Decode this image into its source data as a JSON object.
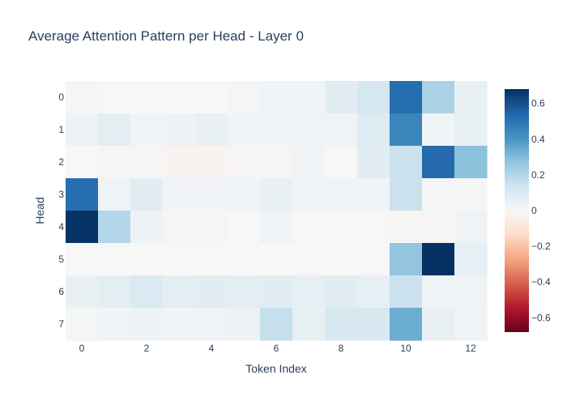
{
  "chart_data": {
    "type": "heatmap",
    "title": "Average Attention Pattern per Head - Layer 0",
    "xlabel": "Token Index",
    "ylabel": "Head",
    "x": [
      0,
      1,
      2,
      3,
      4,
      5,
      6,
      7,
      8,
      9,
      10,
      11,
      12
    ],
    "y": [
      0,
      1,
      2,
      3,
      4,
      5,
      6,
      7
    ],
    "x_tick_labels": [
      "0",
      "2",
      "4",
      "6",
      "8",
      "10",
      "12"
    ],
    "y_tick_labels": [
      "0",
      "1",
      "2",
      "3",
      "4",
      "5",
      "6",
      "7"
    ],
    "z": [
      [
        0.01,
        0.0,
        0.0,
        0.0,
        0.0,
        0.01,
        0.02,
        0.02,
        0.08,
        0.12,
        0.52,
        0.22,
        0.05
      ],
      [
        0.04,
        0.07,
        0.02,
        0.04,
        0.05,
        0.02,
        0.02,
        0.03,
        0.03,
        0.09,
        0.45,
        0.02,
        0.05
      ],
      [
        0.0,
        -0.01,
        -0.01,
        -0.02,
        -0.02,
        -0.01,
        -0.01,
        0.02,
        0.0,
        0.08,
        0.15,
        0.53,
        0.28
      ],
      [
        0.52,
        0.03,
        0.08,
        0.02,
        0.02,
        0.02,
        0.05,
        0.02,
        0.02,
        0.02,
        0.15,
        0.01,
        0.01
      ],
      [
        0.67,
        0.2,
        0.04,
        -0.01,
        -0.01,
        0.0,
        0.03,
        0.0,
        0.0,
        0.0,
        -0.01,
        -0.01,
        0.03
      ],
      [
        0.0,
        0.0,
        0.0,
        0.0,
        0.0,
        0.0,
        0.0,
        0.0,
        0.0,
        0.0,
        0.27,
        0.68,
        0.06
      ],
      [
        0.05,
        0.07,
        0.1,
        0.07,
        0.08,
        0.07,
        0.08,
        0.06,
        0.08,
        0.06,
        0.15,
        0.03,
        0.03
      ],
      [
        0.01,
        0.02,
        0.04,
        0.02,
        0.03,
        0.04,
        0.16,
        0.05,
        0.11,
        0.11,
        0.34,
        0.05,
        0.02
      ]
    ],
    "zmin": -0.68,
    "zmax": 0.68,
    "colorscale": "RdBu",
    "colorbar_ticks": [
      0.6,
      0.4,
      0.2,
      0,
      -0.2,
      -0.4,
      -0.6
    ],
    "colorbar_tick_labels": [
      "0.6",
      "0.4",
      "0.2",
      "0",
      "−0.2",
      "−0.4",
      "−0.6"
    ]
  }
}
